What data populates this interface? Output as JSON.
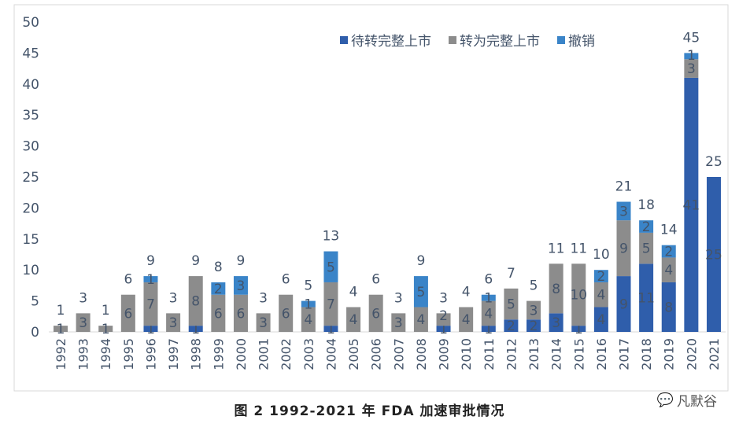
{
  "chart_data": {
    "type": "bar",
    "stacked": true,
    "title": "",
    "xlabel": "",
    "ylabel": "",
    "ylim": [
      0,
      50
    ],
    "yticks": [
      0,
      5,
      10,
      15,
      20,
      25,
      30,
      35,
      40,
      45,
      50
    ],
    "grid": false,
    "legend_position": "top-right",
    "categories": [
      "1992",
      "1993",
      "1994",
      "1995",
      "1996",
      "1997",
      "1998",
      "1999",
      "2000",
      "2001",
      "2002",
      "2003",
      "2004",
      "2005",
      "2006",
      "2007",
      "2008",
      "2009",
      "2010",
      "2011",
      "2012",
      "2013",
      "2014",
      "2015",
      "2016",
      "2017",
      "2018",
      "2019",
      "2020",
      "2021"
    ],
    "series": [
      {
        "name": "待转完整上市",
        "color": "#2f5eab",
        "values": [
          0,
          0,
          0,
          0,
          1,
          0,
          1,
          0,
          0,
          0,
          0,
          0,
          1,
          0,
          0,
          0,
          0,
          1,
          0,
          1,
          2,
          2,
          3,
          1,
          4,
          9,
          11,
          8,
          41,
          25
        ]
      },
      {
        "name": "转为完整上市",
        "color": "#8c8c8c",
        "values": [
          1,
          3,
          1,
          6,
          7,
          3,
          8,
          6,
          6,
          3,
          6,
          4,
          7,
          4,
          6,
          3,
          4,
          2,
          4,
          4,
          5,
          3,
          8,
          10,
          4,
          9,
          5,
          4,
          3,
          0
        ]
      },
      {
        "name": "撤销",
        "color": "#3a84c8",
        "values": [
          0,
          0,
          0,
          0,
          1,
          0,
          0,
          2,
          3,
          0,
          0,
          1,
          5,
          0,
          0,
          0,
          5,
          0,
          0,
          1,
          0,
          0,
          0,
          0,
          2,
          3,
          2,
          2,
          1,
          0
        ]
      }
    ],
    "totals": [
      1,
      3,
      1,
      6,
      9,
      3,
      9,
      8,
      9,
      3,
      6,
      5,
      13,
      4,
      6,
      3,
      9,
      3,
      4,
      6,
      7,
      5,
      11,
      11,
      10,
      21,
      18,
      14,
      45,
      25
    ]
  },
  "caption": "图 2  1992-2021 年 FDA 加速审批情况",
  "watermark": "凡默谷"
}
